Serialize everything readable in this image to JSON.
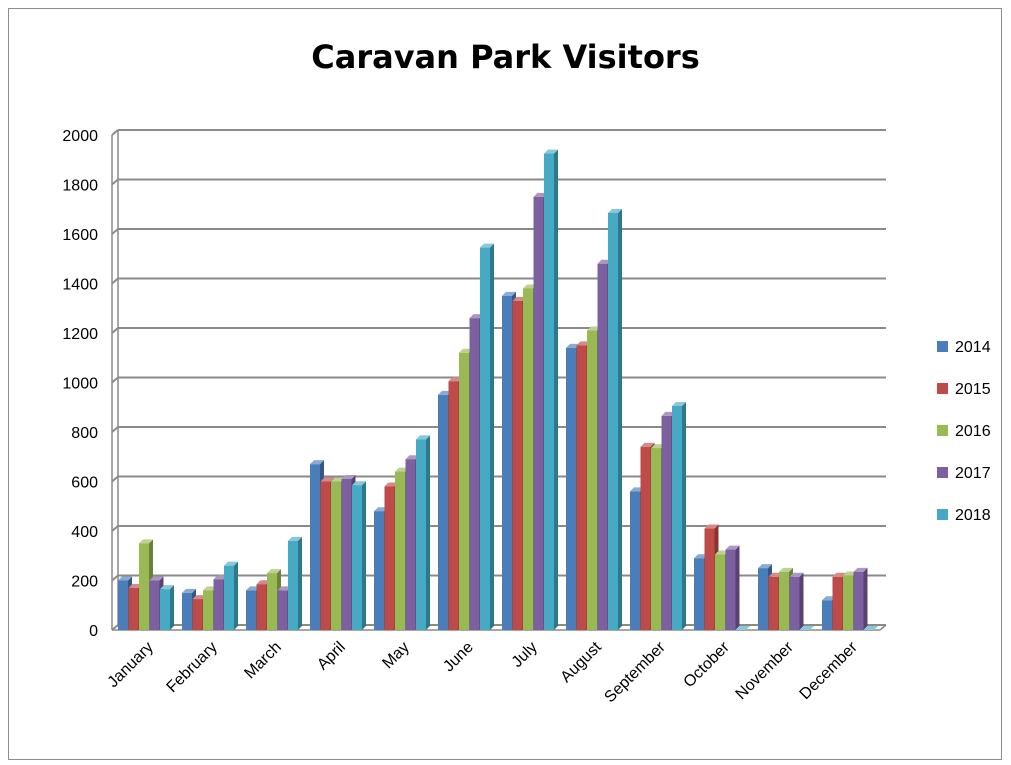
{
  "chart_data": {
    "type": "bar",
    "title": "Caravan Park Visitors",
    "xlabel": "",
    "ylabel": "",
    "ylim": [
      0,
      2000
    ],
    "yticks": [
      0,
      200,
      400,
      600,
      800,
      1000,
      1200,
      1400,
      1600,
      1800,
      2000
    ],
    "grid": true,
    "legend_position": "right",
    "categories": [
      "January",
      "February",
      "March",
      "April",
      "May",
      "June",
      "July",
      "August",
      "September",
      "October",
      "November",
      "December"
    ],
    "series": [
      {
        "name": "2014",
        "color": "#4a7ebb",
        "values": [
          200,
          150,
          160,
          670,
          480,
          950,
          1350,
          1140,
          560,
          290,
          250,
          120
        ]
      },
      {
        "name": "2015",
        "color": "#be4b48",
        "values": [
          170,
          125,
          185,
          600,
          580,
          1005,
          1330,
          1150,
          740,
          410,
          215,
          215
        ]
      },
      {
        "name": "2016",
        "color": "#98b954",
        "values": [
          350,
          160,
          230,
          600,
          640,
          1120,
          1380,
          1210,
          735,
          305,
          235,
          220
        ]
      },
      {
        "name": "2017",
        "color": "#7d60a0",
        "values": [
          200,
          205,
          160,
          610,
          690,
          1260,
          1750,
          1480,
          865,
          325,
          215,
          235
        ]
      },
      {
        "name": "2018",
        "color": "#46aac5",
        "values": [
          165,
          260,
          360,
          585,
          770,
          1545,
          1925,
          1685,
          905,
          0,
          0,
          0
        ]
      }
    ]
  }
}
